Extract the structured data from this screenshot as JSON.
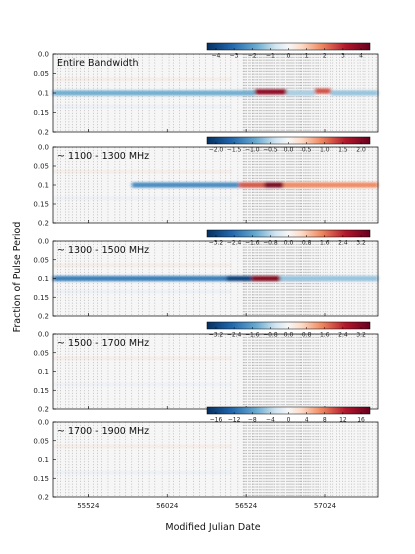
{
  "chart_data": [
    {
      "type": "heatmap",
      "title": "Entire Bandwidth",
      "colorbar_ticks": [
        "−4",
        "−3",
        "−2",
        "−1",
        "0",
        "1",
        "2",
        "3",
        "4"
      ],
      "colorbar_range": [
        -4.8,
        4.8
      ],
      "y_ticks": [
        "0.0",
        "0.05",
        "0.1",
        "0.15",
        "0.2"
      ],
      "features": [
        {
          "x_start": 55300,
          "x_end": 56580,
          "phase": 0.1,
          "value": -1.8
        },
        {
          "x_start": 56580,
          "x_end": 56780,
          "phase": 0.097,
          "value": 4.0
        },
        {
          "x_start": 56780,
          "x_end": 56960,
          "phase": 0.1,
          "value": -1.2
        },
        {
          "x_start": 56960,
          "x_end": 57060,
          "phase": 0.095,
          "value": 2.6
        },
        {
          "x_start": 57060,
          "x_end": 57360,
          "phase": 0.1,
          "value": -1.4
        }
      ]
    },
    {
      "type": "heatmap",
      "title": "~ 1100 - 1300 MHz",
      "colorbar_ticks": [
        "−2.0",
        "−1.5",
        "−1.0",
        "−0.5",
        "0.0",
        "0.5",
        "1.0",
        "1.5",
        "2.0"
      ],
      "colorbar_range": [
        -2.3,
        2.3
      ],
      "y_ticks": [
        "0.0",
        "0.05",
        "0.1",
        "0.15",
        "0.2"
      ],
      "features": [
        {
          "x_start": 55800,
          "x_end": 56480,
          "phase": 0.1,
          "value": -1.2
        },
        {
          "x_start": 56480,
          "x_end": 56640,
          "phase": 0.1,
          "value": 1.2
        },
        {
          "x_start": 56640,
          "x_end": 56760,
          "phase": 0.1,
          "value": 2.1
        },
        {
          "x_start": 56760,
          "x_end": 57360,
          "phase": 0.1,
          "value": 0.9
        }
      ]
    },
    {
      "type": "heatmap",
      "title": "~ 1300 - 1500 MHz",
      "colorbar_ticks": [
        "−3.2",
        "−2.4",
        "−1.6",
        "−0.8",
        "0.0",
        "0.8",
        "1.6",
        "2.4",
        "3.2"
      ],
      "colorbar_range": [
        -3.4,
        3.4
      ],
      "y_ticks": [
        "0.0",
        "0.05",
        "0.1",
        "0.15",
        "0.2"
      ],
      "features": [
        {
          "x_start": 55300,
          "x_end": 56400,
          "phase": 0.1,
          "value": -2.0
        },
        {
          "x_start": 56400,
          "x_end": 56560,
          "phase": 0.1,
          "value": -3.0
        },
        {
          "x_start": 56560,
          "x_end": 56740,
          "phase": 0.1,
          "value": 3.0
        },
        {
          "x_start": 56740,
          "x_end": 57360,
          "phase": 0.1,
          "value": -1.0
        }
      ]
    },
    {
      "type": "heatmap",
      "title": "~ 1500 - 1700 MHz",
      "colorbar_ticks": [
        "−3.2",
        "−2.4",
        "−1.6",
        "−0.8",
        "0.0",
        "0.8",
        "1.6",
        "2.4",
        "3.2"
      ],
      "colorbar_range": [
        -3.4,
        3.4
      ],
      "y_ticks": [
        "0.0",
        "0.05",
        "0.1",
        "0.15",
        "0.2"
      ],
      "features": []
    },
    {
      "type": "heatmap",
      "title": "~ 1700 - 1900 MHz",
      "colorbar_ticks": [
        "−16",
        "−12",
        "−8",
        "−4",
        "0",
        "4",
        "8",
        "12",
        "16"
      ],
      "colorbar_range": [
        -18,
        18
      ],
      "y_ticks": [
        "0.0",
        "0.05",
        "0.1",
        "0.15",
        "0.2"
      ],
      "features": []
    }
  ],
  "shared": {
    "xlabel": "Modified Julian Date",
    "ylabel": "Fraction of Pulse Period",
    "x_range": [
      55300,
      57360
    ],
    "x_ticks": [
      55524,
      56024,
      56524,
      57024
    ],
    "x_tick_labels": [
      "55524",
      "56024",
      "56524",
      "57024"
    ],
    "colormap": "RdBu_r",
    "colors": {
      "negative": "#2166ac",
      "positive": "#b2182b",
      "zero": "#f7f7f7"
    }
  }
}
